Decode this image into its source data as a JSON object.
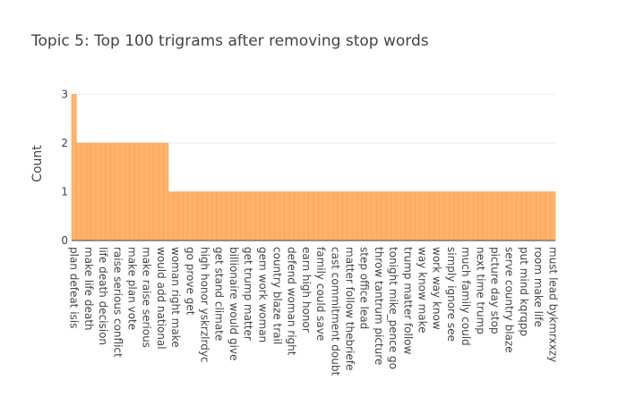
{
  "chart_data": {
    "type": "bar",
    "title": "Topic 5: Top 100 trigrams after removing stop words",
    "xlabel": "",
    "ylabel": "Count",
    "ylim": [
      0,
      3.1
    ],
    "yticks": [
      0,
      1,
      2,
      3
    ],
    "grid": true,
    "legend": "none",
    "bar_color": "#FFB26B",
    "bar_edge_color": "#F4A050",
    "grid_color": "#EEEEEE",
    "n_bars": 100,
    "values": [
      3,
      2,
      2,
      2,
      2,
      2,
      2,
      2,
      2,
      2,
      2,
      2,
      2,
      2,
      2,
      2,
      2,
      2,
      2,
      2,
      1,
      1,
      1,
      1,
      1,
      1,
      1,
      1,
      1,
      1,
      1,
      1,
      1,
      1,
      1,
      1,
      1,
      1,
      1,
      1,
      1,
      1,
      1,
      1,
      1,
      1,
      1,
      1,
      1,
      1,
      1,
      1,
      1,
      1,
      1,
      1,
      1,
      1,
      1,
      1,
      1,
      1,
      1,
      1,
      1,
      1,
      1,
      1,
      1,
      1,
      1,
      1,
      1,
      1,
      1,
      1,
      1,
      1,
      1,
      1,
      1,
      1,
      1,
      1,
      1,
      1,
      1,
      1,
      1,
      1,
      1,
      1,
      1,
      1,
      1,
      1,
      1,
      1,
      1,
      1
    ],
    "x_tick_labels": [
      {
        "index": 0,
        "label": "plan defeat isis"
      },
      {
        "index": 3,
        "label": "make life death"
      },
      {
        "index": 6,
        "label": "life death decision"
      },
      {
        "index": 9,
        "label": "raise serious conflict"
      },
      {
        "index": 12,
        "label": "make plan vote"
      },
      {
        "index": 15,
        "label": "make raise serious"
      },
      {
        "index": 18,
        "label": "would add national"
      },
      {
        "index": 21,
        "label": "woman right make"
      },
      {
        "index": 24,
        "label": "go prove get"
      },
      {
        "index": 27,
        "label": "high honor yskrzlrdyc"
      },
      {
        "index": 30,
        "label": "get stand climate"
      },
      {
        "index": 33,
        "label": "billionaire would give"
      },
      {
        "index": 36,
        "label": "get trump matter"
      },
      {
        "index": 39,
        "label": "gem work woman"
      },
      {
        "index": 42,
        "label": "country blaze trail"
      },
      {
        "index": 45,
        "label": "defend woman right"
      },
      {
        "index": 48,
        "label": "earn high honor"
      },
      {
        "index": 51,
        "label": "family could save"
      },
      {
        "index": 54,
        "label": "cast commitment doubt"
      },
      {
        "index": 57,
        "label": "matter follow thebriefe"
      },
      {
        "index": 60,
        "label": "step office lead"
      },
      {
        "index": 63,
        "label": "throw tantrum picture"
      },
      {
        "index": 66,
        "label": "tonight mike_pence go"
      },
      {
        "index": 69,
        "label": "trump matter follow"
      },
      {
        "index": 72,
        "label": "way know make"
      },
      {
        "index": 75,
        "label": "work way know"
      },
      {
        "index": 78,
        "label": "simply ignore see"
      },
      {
        "index": 81,
        "label": "much family could"
      },
      {
        "index": 84,
        "label": "next time trump"
      },
      {
        "index": 87,
        "label": "picture day stop"
      },
      {
        "index": 90,
        "label": "serve country blaze"
      },
      {
        "index": 93,
        "label": "put mind kqrqpp"
      },
      {
        "index": 96,
        "label": "room make life"
      },
      {
        "index": 99,
        "label": "must lead bykmrxxzy"
      }
    ]
  }
}
